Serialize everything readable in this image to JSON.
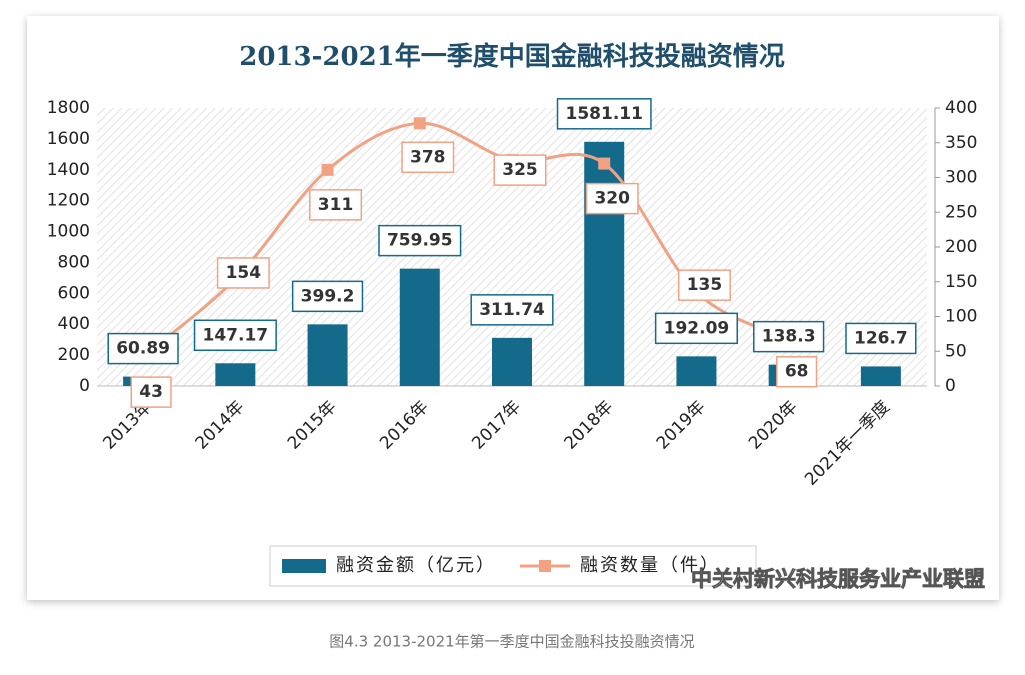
{
  "chart_data": {
    "type": "bar",
    "title": "2013-2021年一季度中国金融科技投融资情况",
    "categories": [
      "2013年",
      "2014年",
      "2015年",
      "2016年",
      "2017年",
      "2018年",
      "2019年",
      "2020年",
      "2021年一季度"
    ],
    "series": [
      {
        "name": "融资金额（亿元）",
        "type": "bar",
        "color": "#136a8a",
        "values": [
          60.89,
          147.17,
          399.2,
          759.95,
          311.74,
          1581.11,
          192.09,
          138.3,
          126.7
        ]
      },
      {
        "name": "融资数量（件）",
        "type": "line",
        "axis": "y2",
        "color": "#f0a283",
        "values": [
          43,
          154,
          311,
          378,
          325,
          320,
          135,
          68,
          null
        ]
      }
    ],
    "ylim": [
      0,
      1800
    ],
    "yticks": [
      0,
      200,
      400,
      600,
      800,
      1000,
      1200,
      1400,
      1600,
      1800
    ],
    "y2lim": [
      0,
      400
    ],
    "y2ticks": [
      0,
      50,
      100,
      150,
      200,
      250,
      300,
      350,
      400
    ],
    "watermark": "中关村新兴科技服务业产业联盟",
    "caption": "图4.3 2013-2021年第一季度中国金融科技投融资情况"
  }
}
